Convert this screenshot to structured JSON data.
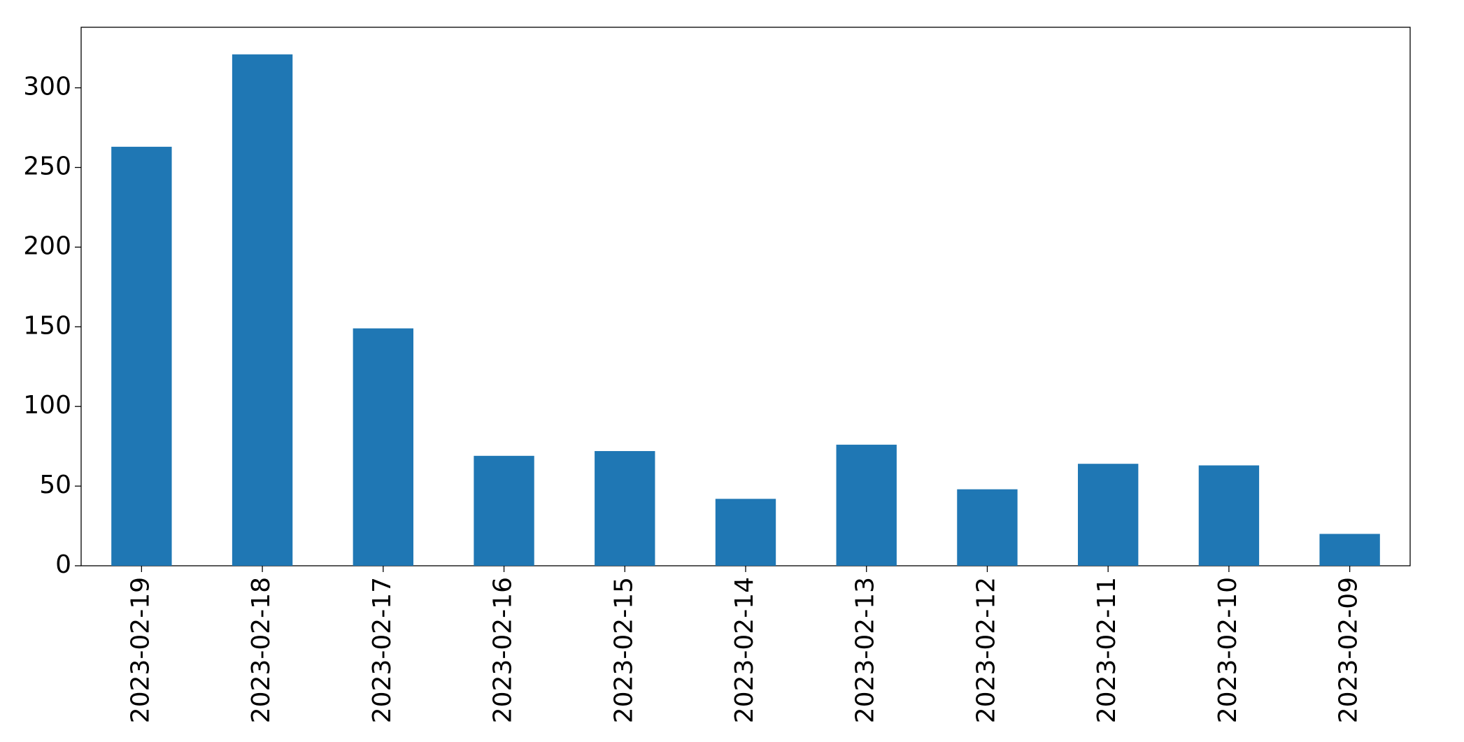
{
  "chart_data": {
    "type": "bar",
    "categories": [
      "2023-02-19",
      "2023-02-18",
      "2023-02-17",
      "2023-02-16",
      "2023-02-15",
      "2023-02-14",
      "2023-02-13",
      "2023-02-12",
      "2023-02-11",
      "2023-02-10",
      "2023-02-09"
    ],
    "values": [
      263,
      321,
      149,
      69,
      72,
      42,
      76,
      48,
      64,
      63,
      20
    ],
    "color": "#1f77b4",
    "ylim": [
      0,
      338
    ],
    "yticks": [
      0,
      50,
      100,
      150,
      200,
      250,
      300
    ],
    "grid": false
  }
}
